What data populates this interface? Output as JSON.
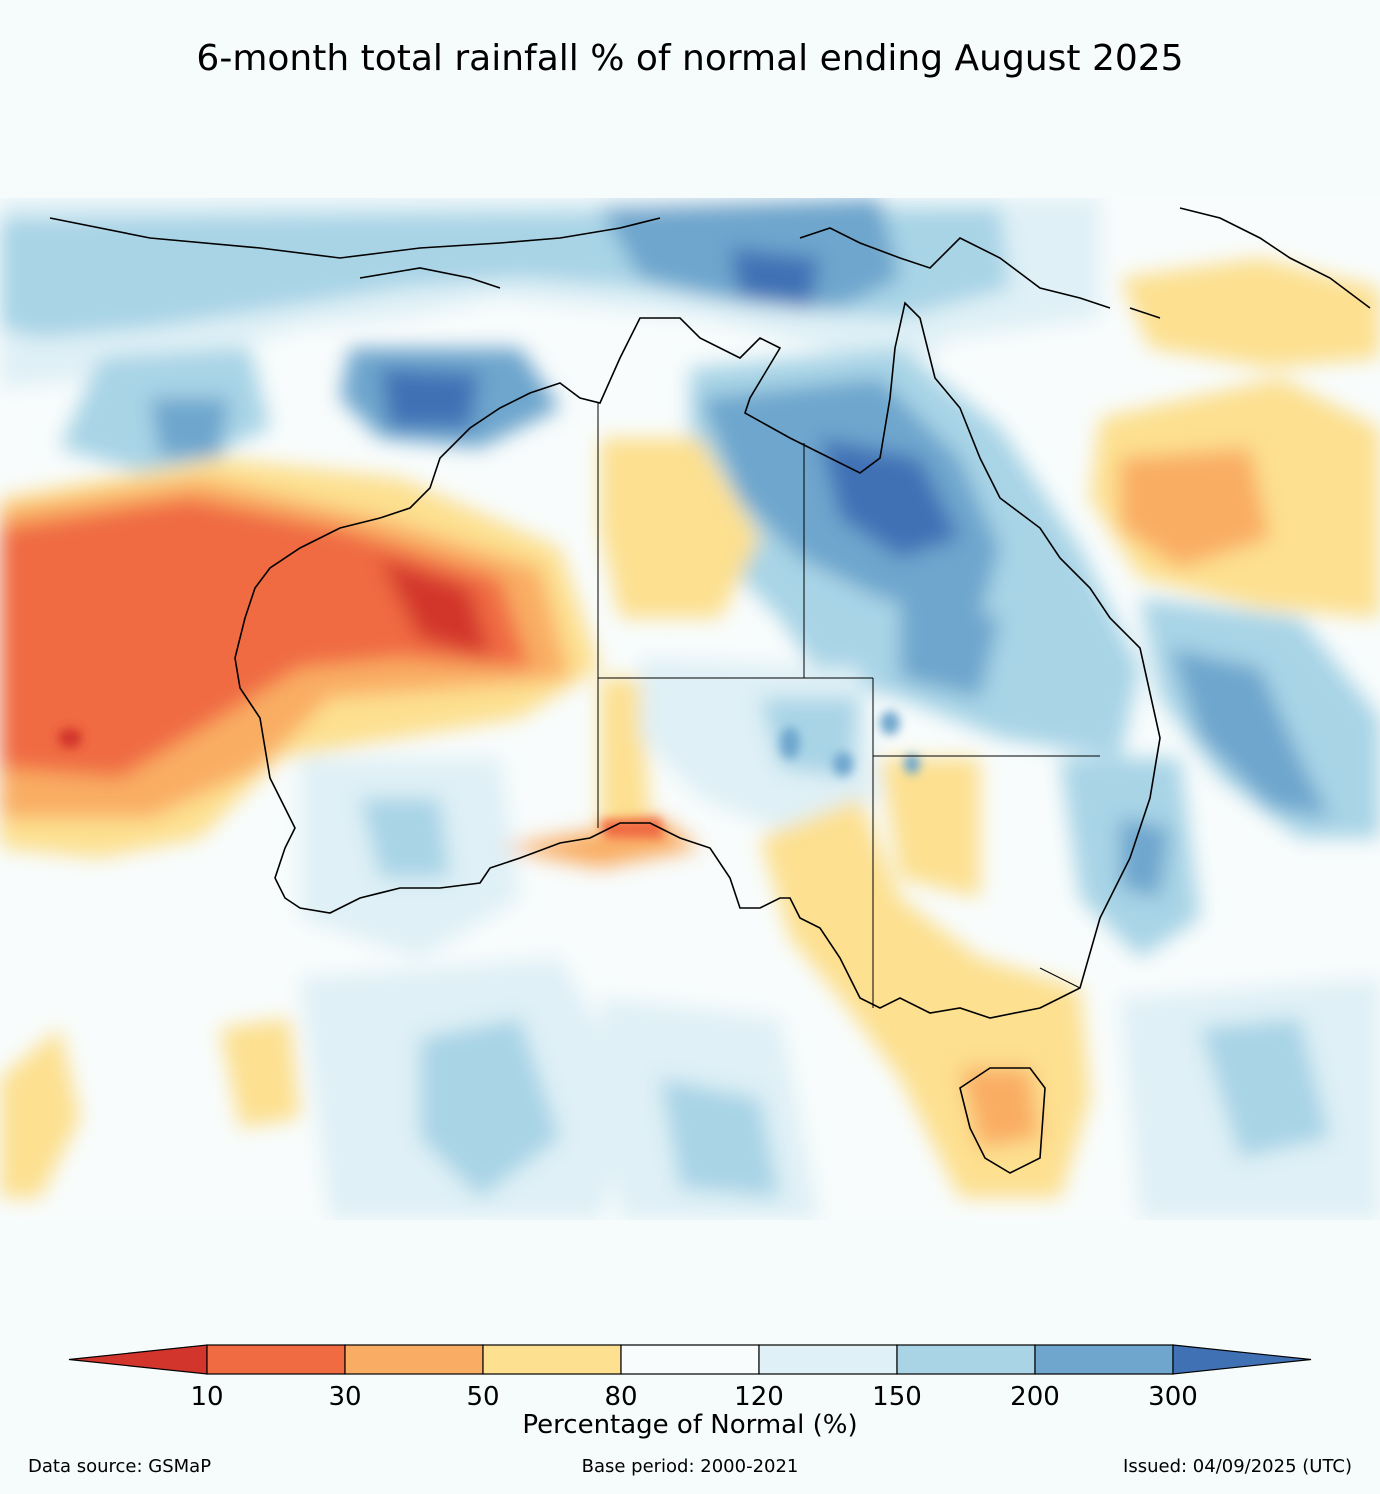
{
  "title": "6-month total rainfall % of normal ending August 2025",
  "legend": {
    "title": "Percentage of Normal (%)",
    "ticks": [
      "10",
      "30",
      "50",
      "80",
      "120",
      "150",
      "200",
      "300"
    ],
    "bins": [
      {
        "range": "<10",
        "color": "#d2352b"
      },
      {
        "range": "10-30",
        "color": "#f06a42"
      },
      {
        "range": "30-50",
        "color": "#f9ad64"
      },
      {
        "range": "50-80",
        "color": "#fde090"
      },
      {
        "range": "80-120",
        "color": "#f8fcfc"
      },
      {
        "range": "120-150",
        "color": "#dff0f6"
      },
      {
        "range": "150-200",
        "color": "#a8d4e6"
      },
      {
        "range": "200-300",
        "color": "#6ea6cd"
      },
      {
        "range": ">300",
        "color": "#4171b5"
      }
    ]
  },
  "footer": {
    "source": "Data source: GSMaP",
    "base_period": "Base period: 2000-2021",
    "issued": "Issued: 04/09/2025 (UTC)"
  }
}
